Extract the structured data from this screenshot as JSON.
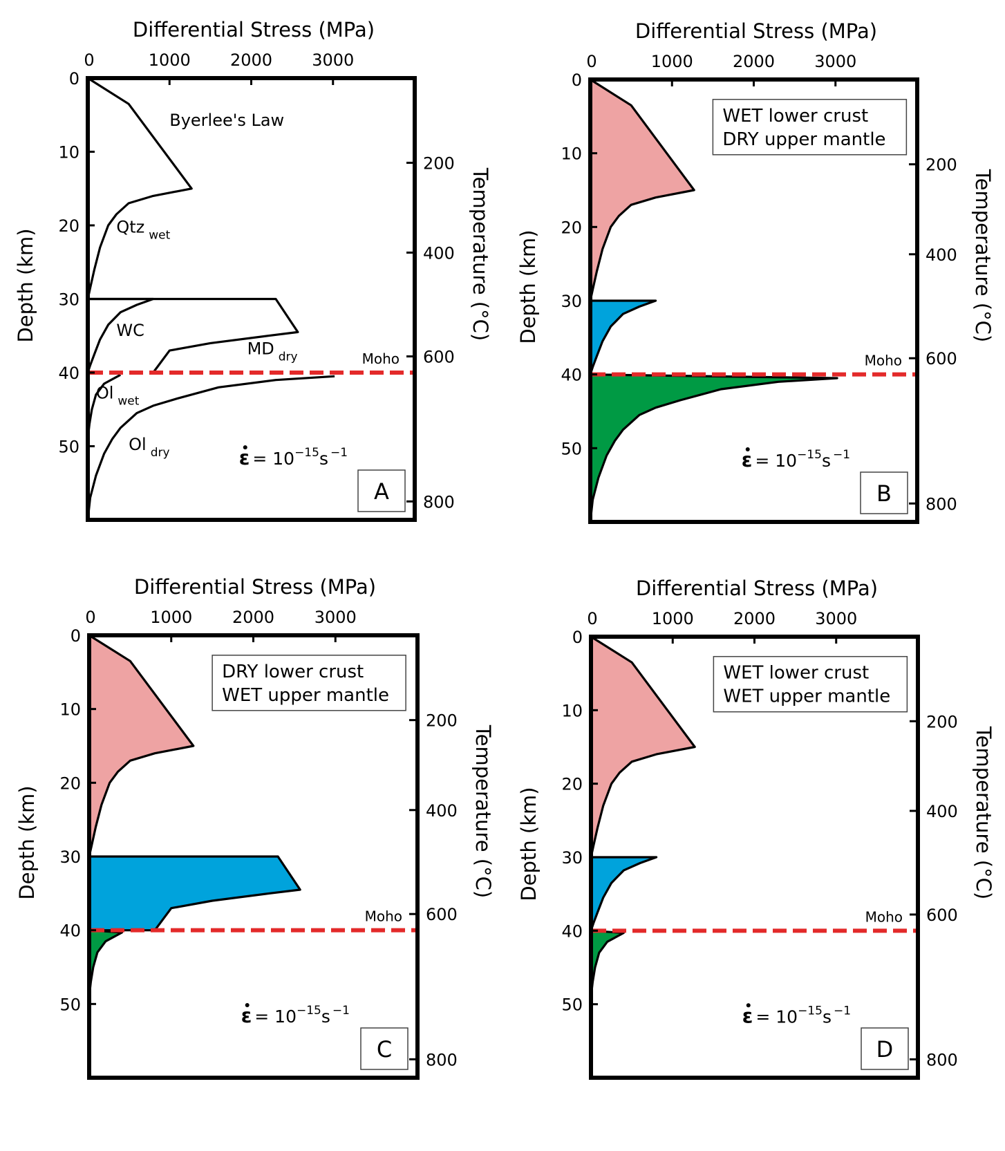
{
  "chart_data": [
    {
      "panel": "A",
      "type": "line",
      "xlabel": "Differential Stress (MPa)",
      "ylabel": "Depth (km)",
      "y2label": "Temperature (°C)",
      "xlim": [
        0,
        4000
      ],
      "ylim": [
        60,
        0
      ],
      "xticks": [
        "0",
        "1000",
        "2000",
        "3000"
      ],
      "yticks": [
        "0",
        "10",
        "20",
        "30",
        "40",
        "50"
      ],
      "y2ticks": [
        "200",
        "400",
        "600",
        "800"
      ],
      "moho": {
        "label": "Moho",
        "depth": 40
      },
      "note": "",
      "letter": "A",
      "strain_rate": {
        "base": "= 10",
        "exponent": "−15",
        "unit": "s",
        "unit_exponent": "−1"
      },
      "curve_labels": [
        {
          "text": "Byerlee's Law",
          "sub": ""
        },
        {
          "text": "Qtz",
          "sub": "wet"
        },
        {
          "text": "WC",
          "sub": ""
        },
        {
          "text": "MD",
          "sub": "dry"
        },
        {
          "text": "Ol",
          "sub": "wet"
        },
        {
          "text": "Ol",
          "sub": "dry"
        }
      ],
      "series": [
        {
          "layer": "upper-crust",
          "fill": "none",
          "points": [
            [
              0,
              0
            ],
            [
              500,
              3.5
            ],
            [
              1270,
              15
            ],
            [
              800,
              16
            ],
            [
              500,
              17
            ],
            [
              350,
              18.5
            ],
            [
              250,
              20
            ],
            [
              150,
              23
            ],
            [
              80,
              26
            ],
            [
              30,
              28.5
            ],
            [
              0,
              30
            ]
          ]
        },
        {
          "layer": "lower-crust",
          "fill": "none",
          "points": [
            [
              0,
              30
            ],
            [
              2300,
              30
            ],
            [
              2570,
              34.5
            ],
            [
              2200,
              35
            ],
            [
              1500,
              36
            ],
            [
              1000,
              37
            ],
            [
              800,
              40
            ]
          ]
        },
        {
          "layer": "lower-crust-wet",
          "fill": "none",
          "points": [
            [
              0,
              30
            ],
            [
              800,
              30
            ],
            [
              600,
              30.8
            ],
            [
              400,
              31.8
            ],
            [
              250,
              33.5
            ],
            [
              150,
              35.5
            ],
            [
              80,
              37.5
            ],
            [
              30,
              39
            ],
            [
              0,
              40
            ]
          ]
        },
        {
          "layer": "upper-mantle",
          "fill": "none",
          "points": [
            [
              3020,
              40.5
            ],
            [
              2300,
              41
            ],
            [
              1600,
              42
            ],
            [
              1100,
              43.5
            ],
            [
              800,
              44.5
            ],
            [
              600,
              45.5
            ],
            [
              400,
              47.5
            ],
            [
              300,
              49
            ],
            [
              200,
              51
            ],
            [
              100,
              54
            ],
            [
              30,
              57
            ],
            [
              0,
              60
            ]
          ]
        },
        {
          "layer": "upper-mantle-wet",
          "fill": "none",
          "points": [
            [
              400,
              40.3
            ],
            [
              200,
              41.5
            ],
            [
              100,
              43
            ],
            [
              50,
              45
            ],
            [
              20,
              47
            ],
            [
              0,
              49
            ]
          ]
        }
      ]
    },
    {
      "panel": "B",
      "type": "area",
      "xlabel": "Differential Stress (MPa)",
      "ylabel": "Depth (km)",
      "y2label": "Temperature (°C)",
      "xlim": [
        0,
        4000
      ],
      "ylim": [
        60,
        0
      ],
      "xticks": [
        "0",
        "1000",
        "2000",
        "3000"
      ],
      "yticks": [
        "0",
        "10",
        "20",
        "30",
        "40",
        "50"
      ],
      "y2ticks": [
        "200",
        "400",
        "600",
        "800"
      ],
      "moho": {
        "label": "Moho",
        "depth": 40
      },
      "note": [
        "WET lower crust",
        "DRY upper mantle"
      ],
      "letter": "B",
      "strain_rate": {
        "base": "= 10",
        "exponent": "−15",
        "unit": "s",
        "unit_exponent": "−1"
      },
      "curve_labels": [],
      "series": [
        {
          "layer": "upper-crust",
          "fill": "#EEA3A3",
          "points": [
            [
              0,
              0
            ],
            [
              500,
              3.5
            ],
            [
              1270,
              15
            ],
            [
              800,
              16
            ],
            [
              500,
              17
            ],
            [
              350,
              18.5
            ],
            [
              250,
              20
            ],
            [
              150,
              23
            ],
            [
              80,
              26
            ],
            [
              30,
              28.5
            ],
            [
              0,
              30
            ]
          ]
        },
        {
          "layer": "lower-crust",
          "fill": "#00A3DC",
          "points": [
            [
              0,
              30
            ],
            [
              800,
              30
            ],
            [
              600,
              30.8
            ],
            [
              400,
              31.8
            ],
            [
              250,
              33.5
            ],
            [
              150,
              35.5
            ],
            [
              80,
              37.5
            ],
            [
              30,
              39
            ],
            [
              0,
              40
            ]
          ]
        },
        {
          "layer": "upper-mantle",
          "fill": "#009A44",
          "points": [
            [
              0,
              40
            ],
            [
              3020,
              40.5
            ],
            [
              2300,
              41
            ],
            [
              1600,
              42
            ],
            [
              1100,
              43.5
            ],
            [
              800,
              44.5
            ],
            [
              600,
              45.5
            ],
            [
              400,
              47.5
            ],
            [
              300,
              49
            ],
            [
              200,
              51
            ],
            [
              100,
              54
            ],
            [
              30,
              57
            ],
            [
              0,
              60
            ]
          ]
        }
      ]
    },
    {
      "panel": "C",
      "type": "area",
      "xlabel": "Differential Stress (MPa)",
      "ylabel": "Depth (km)",
      "y2label": "Temperature (°C)",
      "xlim": [
        0,
        4000
      ],
      "ylim": [
        60,
        0
      ],
      "xticks": [
        "0",
        "1000",
        "2000",
        "3000"
      ],
      "yticks": [
        "0",
        "10",
        "20",
        "30",
        "40",
        "50"
      ],
      "y2ticks": [
        "200",
        "400",
        "600",
        "800"
      ],
      "moho": {
        "label": "Moho",
        "depth": 40
      },
      "note": [
        "DRY lower crust",
        "WET upper mantle"
      ],
      "letter": "C",
      "strain_rate": {
        "base": "= 10",
        "exponent": "−15",
        "unit": "s",
        "unit_exponent": "−1"
      },
      "curve_labels": [],
      "series": [
        {
          "layer": "upper-crust",
          "fill": "#EEA3A3",
          "points": [
            [
              0,
              0
            ],
            [
              500,
              3.5
            ],
            [
              1270,
              15
            ],
            [
              800,
              16
            ],
            [
              500,
              17
            ],
            [
              350,
              18.5
            ],
            [
              250,
              20
            ],
            [
              150,
              23
            ],
            [
              80,
              26
            ],
            [
              30,
              28.5
            ],
            [
              0,
              30
            ]
          ]
        },
        {
          "layer": "lower-crust",
          "fill": "#00A3DC",
          "points": [
            [
              0,
              30
            ],
            [
              2300,
              30
            ],
            [
              2570,
              34.5
            ],
            [
              2200,
              35
            ],
            [
              1500,
              36
            ],
            [
              1000,
              37
            ],
            [
              800,
              40
            ],
            [
              0,
              40
            ]
          ]
        },
        {
          "layer": "upper-mantle",
          "fill": "#009A44",
          "points": [
            [
              0,
              40
            ],
            [
              400,
              40.3
            ],
            [
              200,
              41.5
            ],
            [
              100,
              43
            ],
            [
              50,
              45
            ],
            [
              20,
              47
            ],
            [
              0,
              49
            ]
          ]
        }
      ]
    },
    {
      "panel": "D",
      "type": "area",
      "xlabel": "Differential Stress (MPa)",
      "ylabel": "Depth (km)",
      "y2label": "Temperature (°C)",
      "xlim": [
        0,
        4000
      ],
      "ylim": [
        60,
        0
      ],
      "xticks": [
        "0",
        "1000",
        "2000",
        "3000"
      ],
      "yticks": [
        "0",
        "10",
        "20",
        "30",
        "40",
        "50"
      ],
      "y2ticks": [
        "200",
        "400",
        "600",
        "800"
      ],
      "moho": {
        "label": "Moho",
        "depth": 40
      },
      "note": [
        "WET lower crust",
        "WET upper mantle"
      ],
      "letter": "D",
      "strain_rate": {
        "base": "= 10",
        "exponent": "−15",
        "unit": "s",
        "unit_exponent": "−1"
      },
      "curve_labels": [],
      "series": [
        {
          "layer": "upper-crust",
          "fill": "#EEA3A3",
          "points": [
            [
              0,
              0
            ],
            [
              500,
              3.5
            ],
            [
              1270,
              15
            ],
            [
              800,
              16
            ],
            [
              500,
              17
            ],
            [
              350,
              18.5
            ],
            [
              250,
              20
            ],
            [
              150,
              23
            ],
            [
              80,
              26
            ],
            [
              30,
              28.5
            ],
            [
              0,
              30
            ]
          ]
        },
        {
          "layer": "lower-crust",
          "fill": "#00A3DC",
          "points": [
            [
              0,
              30
            ],
            [
              800,
              30
            ],
            [
              600,
              30.8
            ],
            [
              400,
              31.8
            ],
            [
              250,
              33.5
            ],
            [
              150,
              35.5
            ],
            [
              80,
              37.5
            ],
            [
              30,
              39
            ],
            [
              0,
              40
            ]
          ]
        },
        {
          "layer": "upper-mantle",
          "fill": "#009A44",
          "points": [
            [
              0,
              40
            ],
            [
              400,
              40.3
            ],
            [
              200,
              41.5
            ],
            [
              100,
              43
            ],
            [
              50,
              45
            ],
            [
              20,
              47
            ],
            [
              0,
              49
            ]
          ]
        }
      ]
    }
  ],
  "colors": {
    "moho": "#E32A2A",
    "frame": "#000000"
  }
}
